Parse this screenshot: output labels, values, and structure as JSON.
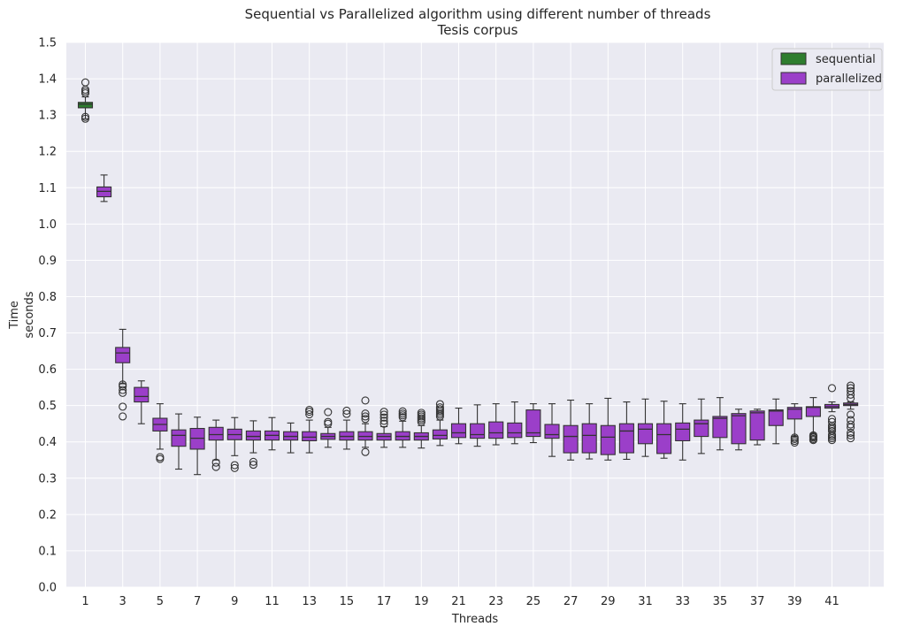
{
  "chart_data": {
    "type": "box",
    "title": "Sequential vs Parallelized algorithm using different number of threads",
    "subtitle": "Tesis corpus",
    "xlabel": "Threads",
    "ylabel": "Time",
    "ylabel_units": "seconds",
    "ylim": [
      0.0,
      1.5
    ],
    "yticks": [
      "0.0",
      "0.1",
      "0.2",
      "0.3",
      "0.4",
      "0.5",
      "0.6",
      "0.7",
      "0.8",
      "0.9",
      "1.0",
      "1.1",
      "1.2",
      "1.3",
      "1.4",
      "1.5"
    ],
    "xticks": [
      "1",
      "3",
      "5",
      "7",
      "9",
      "11",
      "13",
      "15",
      "17",
      "19",
      "21",
      "23",
      "25",
      "27",
      "29",
      "31",
      "33",
      "35",
      "37",
      "39",
      "41"
    ],
    "grid": true,
    "legend_position": "top-right",
    "colors": {
      "sequential": "#2e7d2e",
      "parallelized": "#9b3fc9",
      "background": "#eaeaf2",
      "line": "#333333"
    },
    "series": [
      {
        "name": "sequential",
        "boxes": [
          {
            "threads": 1,
            "whisker_low": 1.29,
            "q1": 1.32,
            "median": 1.33,
            "q3": 1.335,
            "whisker_high": 1.35,
            "outliers": [
              1.29,
              1.295,
              1.36,
              1.365,
              1.37,
              1.39
            ]
          }
        ]
      },
      {
        "name": "parallelized",
        "boxes": [
          {
            "threads": 2,
            "whisker_low": 1.062,
            "q1": 1.075,
            "median": 1.09,
            "q3": 1.102,
            "whisker_high": 1.135,
            "outliers": []
          },
          {
            "threads": 3,
            "whisker_low": 0.56,
            "q1": 0.618,
            "median": 0.645,
            "q3": 0.66,
            "whisker_high": 0.71,
            "outliers": [
              0.47,
              0.497,
              0.535,
              0.543,
              0.553,
              0.558
            ]
          },
          {
            "threads": 4,
            "whisker_low": 0.45,
            "q1": 0.51,
            "median": 0.525,
            "q3": 0.55,
            "whisker_high": 0.568,
            "outliers": []
          },
          {
            "threads": 5,
            "whisker_low": 0.38,
            "q1": 0.43,
            "median": 0.448,
            "q3": 0.465,
            "whisker_high": 0.505,
            "outliers": [
              0.353,
              0.358
            ]
          },
          {
            "threads": 6,
            "whisker_low": 0.325,
            "q1": 0.388,
            "median": 0.418,
            "q3": 0.433,
            "whisker_high": 0.477,
            "outliers": []
          },
          {
            "threads": 7,
            "whisker_low": 0.31,
            "q1": 0.38,
            "median": 0.41,
            "q3": 0.437,
            "whisker_high": 0.468,
            "outliers": []
          },
          {
            "threads": 8,
            "whisker_low": 0.35,
            "q1": 0.405,
            "median": 0.42,
            "q3": 0.44,
            "whisker_high": 0.46,
            "outliers": [
              0.331,
              0.343
            ]
          },
          {
            "threads": 9,
            "whisker_low": 0.362,
            "q1": 0.406,
            "median": 0.42,
            "q3": 0.435,
            "whisker_high": 0.467,
            "outliers": [
              0.328,
              0.336
            ]
          },
          {
            "threads": 10,
            "whisker_low": 0.37,
            "q1": 0.405,
            "median": 0.415,
            "q3": 0.43,
            "whisker_high": 0.458,
            "outliers": [
              0.337,
              0.345
            ]
          },
          {
            "threads": 11,
            "whisker_low": 0.378,
            "q1": 0.405,
            "median": 0.418,
            "q3": 0.43,
            "whisker_high": 0.467,
            "outliers": []
          },
          {
            "threads": 12,
            "whisker_low": 0.37,
            "q1": 0.405,
            "median": 0.415,
            "q3": 0.428,
            "whisker_high": 0.452,
            "outliers": []
          },
          {
            "threads": 13,
            "whisker_low": 0.37,
            "q1": 0.403,
            "median": 0.413,
            "q3": 0.428,
            "whisker_high": 0.46,
            "outliers": [
              0.476,
              0.483,
              0.488
            ]
          },
          {
            "threads": 14,
            "whisker_low": 0.385,
            "q1": 0.407,
            "median": 0.415,
            "q3": 0.423,
            "whisker_high": 0.44,
            "outliers": [
              0.45,
              0.455,
              0.482
            ]
          },
          {
            "threads": 15,
            "whisker_low": 0.38,
            "q1": 0.405,
            "median": 0.415,
            "q3": 0.428,
            "whisker_high": 0.46,
            "outliers": [
              0.477,
              0.486
            ]
          },
          {
            "threads": 16,
            "whisker_low": 0.385,
            "q1": 0.405,
            "median": 0.415,
            "q3": 0.428,
            "whisker_high": 0.45,
            "outliers": [
              0.372,
              0.463,
              0.47,
              0.478,
              0.514
            ]
          },
          {
            "threads": 17,
            "whisker_low": 0.385,
            "q1": 0.405,
            "median": 0.415,
            "q3": 0.423,
            "whisker_high": 0.442,
            "outliers": [
              0.45,
              0.458,
              0.467,
              0.475,
              0.483
            ]
          },
          {
            "threads": 18,
            "whisker_low": 0.385,
            "q1": 0.405,
            "median": 0.415,
            "q3": 0.428,
            "whisker_high": 0.457,
            "outliers": [
              0.468,
              0.473,
              0.478,
              0.484
            ]
          },
          {
            "threads": 19,
            "whisker_low": 0.383,
            "q1": 0.405,
            "median": 0.415,
            "q3": 0.425,
            "whisker_high": 0.445,
            "outliers": [
              0.455,
              0.46,
              0.465,
              0.47,
              0.475,
              0.48
            ]
          },
          {
            "threads": 20,
            "whisker_low": 0.39,
            "q1": 0.408,
            "median": 0.418,
            "q3": 0.433,
            "whisker_high": 0.46,
            "outliers": [
              0.47,
              0.475,
              0.48,
              0.485,
              0.49,
              0.495,
              0.504
            ]
          },
          {
            "threads": 21,
            "whisker_low": 0.395,
            "q1": 0.412,
            "median": 0.425,
            "q3": 0.45,
            "whisker_high": 0.493,
            "outliers": []
          },
          {
            "threads": 22,
            "whisker_low": 0.388,
            "q1": 0.41,
            "median": 0.42,
            "q3": 0.45,
            "whisker_high": 0.502,
            "outliers": []
          },
          {
            "threads": 23,
            "whisker_low": 0.392,
            "q1": 0.41,
            "median": 0.425,
            "q3": 0.455,
            "whisker_high": 0.505,
            "outliers": []
          },
          {
            "threads": 24,
            "whisker_low": 0.395,
            "q1": 0.412,
            "median": 0.425,
            "q3": 0.452,
            "whisker_high": 0.51,
            "outliers": []
          },
          {
            "threads": 25,
            "whisker_low": 0.398,
            "q1": 0.415,
            "median": 0.425,
            "q3": 0.488,
            "whisker_high": 0.505,
            "outliers": []
          },
          {
            "threads": 26,
            "whisker_low": 0.36,
            "q1": 0.41,
            "median": 0.42,
            "q3": 0.448,
            "whisker_high": 0.505,
            "outliers": []
          },
          {
            "threads": 27,
            "whisker_low": 0.35,
            "q1": 0.37,
            "median": 0.415,
            "q3": 0.445,
            "whisker_high": 0.515,
            "outliers": []
          },
          {
            "threads": 28,
            "whisker_low": 0.353,
            "q1": 0.37,
            "median": 0.418,
            "q3": 0.45,
            "whisker_high": 0.505,
            "outliers": []
          },
          {
            "threads": 29,
            "whisker_low": 0.35,
            "q1": 0.365,
            "median": 0.413,
            "q3": 0.445,
            "whisker_high": 0.52,
            "outliers": []
          },
          {
            "threads": 30,
            "whisker_low": 0.352,
            "q1": 0.37,
            "median": 0.43,
            "q3": 0.45,
            "whisker_high": 0.51,
            "outliers": []
          },
          {
            "threads": 31,
            "whisker_low": 0.36,
            "q1": 0.395,
            "median": 0.435,
            "q3": 0.45,
            "whisker_high": 0.518,
            "outliers": []
          },
          {
            "threads": 32,
            "whisker_low": 0.355,
            "q1": 0.368,
            "median": 0.42,
            "q3": 0.45,
            "whisker_high": 0.512,
            "outliers": []
          },
          {
            "threads": 33,
            "whisker_low": 0.35,
            "q1": 0.403,
            "median": 0.435,
            "q3": 0.452,
            "whisker_high": 0.505,
            "outliers": []
          },
          {
            "threads": 34,
            "whisker_low": 0.368,
            "q1": 0.415,
            "median": 0.45,
            "q3": 0.46,
            "whisker_high": 0.518,
            "outliers": []
          },
          {
            "threads": 35,
            "whisker_low": 0.378,
            "q1": 0.412,
            "median": 0.465,
            "q3": 0.47,
            "whisker_high": 0.522,
            "outliers": []
          },
          {
            "threads": 36,
            "whisker_low": 0.378,
            "q1": 0.395,
            "median": 0.472,
            "q3": 0.478,
            "whisker_high": 0.49,
            "outliers": []
          },
          {
            "threads": 37,
            "whisker_low": 0.392,
            "q1": 0.405,
            "median": 0.48,
            "q3": 0.485,
            "whisker_high": 0.49,
            "outliers": []
          },
          {
            "threads": 38,
            "whisker_low": 0.395,
            "q1": 0.445,
            "median": 0.485,
            "q3": 0.488,
            "whisker_high": 0.518,
            "outliers": []
          },
          {
            "threads": 39,
            "whisker_low": 0.415,
            "q1": 0.463,
            "median": 0.49,
            "q3": 0.495,
            "whisker_high": 0.505,
            "outliers": [
              0.398,
              0.403,
              0.408,
              0.412
            ]
          },
          {
            "threads": 40,
            "whisker_low": 0.423,
            "q1": 0.47,
            "median": 0.495,
            "q3": 0.497,
            "whisker_high": 0.522,
            "outliers": [
              0.405,
              0.408,
              0.412,
              0.415,
              0.418
            ]
          },
          {
            "threads": 41,
            "whisker_low": 0.483,
            "q1": 0.493,
            "median": 0.497,
            "q3": 0.503,
            "whisker_high": 0.51,
            "outliers": [
              0.405,
              0.41,
              0.415,
              0.42,
              0.43,
              0.435,
              0.44,
              0.445,
              0.455,
              0.463,
              0.548
            ]
          },
          {
            "threads": 42,
            "whisker_low": 0.49,
            "q1": 0.5,
            "median": 0.503,
            "q3": 0.507,
            "whisker_high": 0.51,
            "outliers": [
              0.41,
              0.418,
              0.425,
              0.44,
              0.448,
              0.46,
              0.475,
              0.52,
              0.53,
              0.54,
              0.548,
              0.555
            ]
          }
        ]
      }
    ]
  }
}
